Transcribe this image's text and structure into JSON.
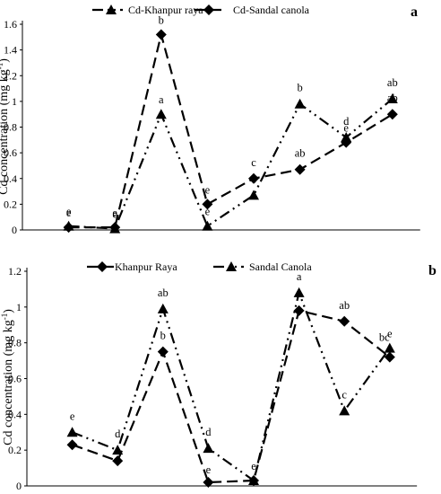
{
  "chart_data": [
    {
      "type": "line",
      "panel_label": "a",
      "ylabel": "Cd concentration (mg kg",
      "ylabel_sup": "-1",
      "ylabel_close": ")",
      "xlabel": "",
      "ylim": [
        0,
        1.6
      ],
      "yticks": [
        "0",
        "0.2",
        "0.4",
        "0.6",
        "0.8",
        "1",
        "1.2",
        "1.4",
        "1.6"
      ],
      "grid": false,
      "legend_position": "top",
      "x": [
        1,
        2,
        3,
        4,
        5,
        6,
        7,
        8
      ],
      "series": [
        {
          "name": "Cd-Khanpur raya",
          "marker": "triangle",
          "dash": "long-dash-dot-dot",
          "values": [
            0.03,
            0.01,
            0.9,
            0.03,
            0.27,
            0.98,
            0.72,
            1.02
          ],
          "labels": [
            "e",
            "e",
            "a",
            "e",
            "c",
            "b",
            "d",
            "ab"
          ]
        },
        {
          "name": "Cd-Sandal canola",
          "marker": "diamond",
          "dash": "long-dash",
          "values": [
            0.02,
            0.02,
            1.52,
            0.2,
            0.4,
            0.47,
            0.68,
            0.9
          ],
          "labels": [
            "e",
            "e",
            "b",
            "e",
            "c",
            "ab",
            "e",
            "ab"
          ]
        }
      ]
    },
    {
      "type": "line",
      "panel_label": "b",
      "ylabel": "Cd concentration (mg kg",
      "ylabel_sup": "-1",
      "ylabel_close": ")",
      "xlabel": "",
      "ylim": [
        0,
        1.2
      ],
      "yticks": [
        "0",
        "0.2",
        "0.4",
        "0.6",
        "0.8",
        "1",
        "1.2"
      ],
      "grid": false,
      "legend_position": "top",
      "x": [
        1,
        2,
        3,
        4,
        5,
        6,
        7,
        8
      ],
      "series": [
        {
          "name": "Khanpur Raya",
          "marker": "diamond",
          "dash": "long-dash",
          "values": [
            0.23,
            0.14,
            0.75,
            0.02,
            0.03,
            0.98,
            0.92,
            0.72
          ],
          "labels": [
            "",
            "",
            "b",
            "e",
            "",
            "",
            "ab",
            "bc"
          ]
        },
        {
          "name": "Sandal Canola",
          "marker": "triangle",
          "dash": "long-dash-dot-dot",
          "values": [
            0.3,
            0.2,
            0.99,
            0.21,
            0.03,
            1.08,
            0.42,
            0.77
          ],
          "labels": [
            "e",
            "d",
            "ab",
            "d",
            "e",
            "a",
            "c",
            "e"
          ]
        }
      ]
    }
  ]
}
